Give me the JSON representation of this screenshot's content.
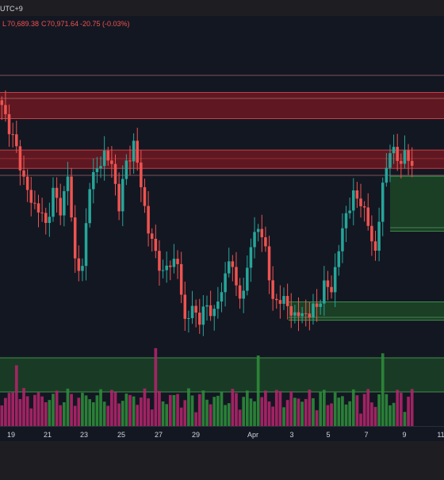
{
  "header": {
    "timezone": "UTC+9",
    "low_label": "L",
    "low_value": "70,689.38",
    "close_label": "C",
    "close_value": "70,971.64",
    "change": "-20.75 (-0.03%)"
  },
  "colors": {
    "background": "#131722",
    "frame": "#1e1e22",
    "up": "#26a69a",
    "down": "#ef5350",
    "volume_up": "#2e8b3a",
    "volume_down": "#b0256a",
    "supply_zone": "#7a1a22",
    "demand_zone": "#1f5a28",
    "axis_text": "#d1d4dc",
    "header_text": "#ef5350"
  },
  "chart_data": {
    "type": "candlestick",
    "xlabel": "",
    "ylabel": "",
    "x_tick_labels": [
      "19",
      "21",
      "23",
      "25",
      "27",
      "29",
      "Apr",
      "3",
      "5",
      "7",
      "9",
      "11"
    ],
    "price_scale_visible": false,
    "price_range_approx": [
      64000,
      74000
    ],
    "candle_interval": "4h",
    "close_path": [
      72900,
      72200,
      71300,
      70200,
      69300,
      69100,
      68400,
      69700,
      69000,
      70300,
      67100,
      66700,
      70100,
      70500,
      71200,
      70700,
      69200,
      70800,
      71500,
      70000,
      68200,
      67400,
      66500,
      67100,
      66900,
      64800,
      65200,
      64900,
      65300,
      65100,
      65900,
      67200,
      66100,
      65700,
      67800,
      68300,
      67600,
      65400,
      65700,
      65300,
      65000,
      65000,
      65100,
      65300,
      66100,
      66000,
      67500,
      68900,
      69500,
      69400,
      68400,
      67400,
      69900,
      71400,
      70900,
      71100,
      70700
    ],
    "zones": [
      {
        "type": "supply",
        "from_price": 72500,
        "to_price": 73500
      },
      {
        "type": "supply",
        "from_price": 70600,
        "to_price": 71300
      },
      {
        "type": "demand",
        "from_price": 68200,
        "to_price": 70300
      },
      {
        "type": "demand",
        "from_price": 64800,
        "to_price": 65500
      }
    ],
    "current_price": 70971.64,
    "volume": {
      "visible": true,
      "zone": {
        "type": "demand"
      },
      "scale_visible": false
    },
    "grid": false,
    "legend": "none"
  }
}
